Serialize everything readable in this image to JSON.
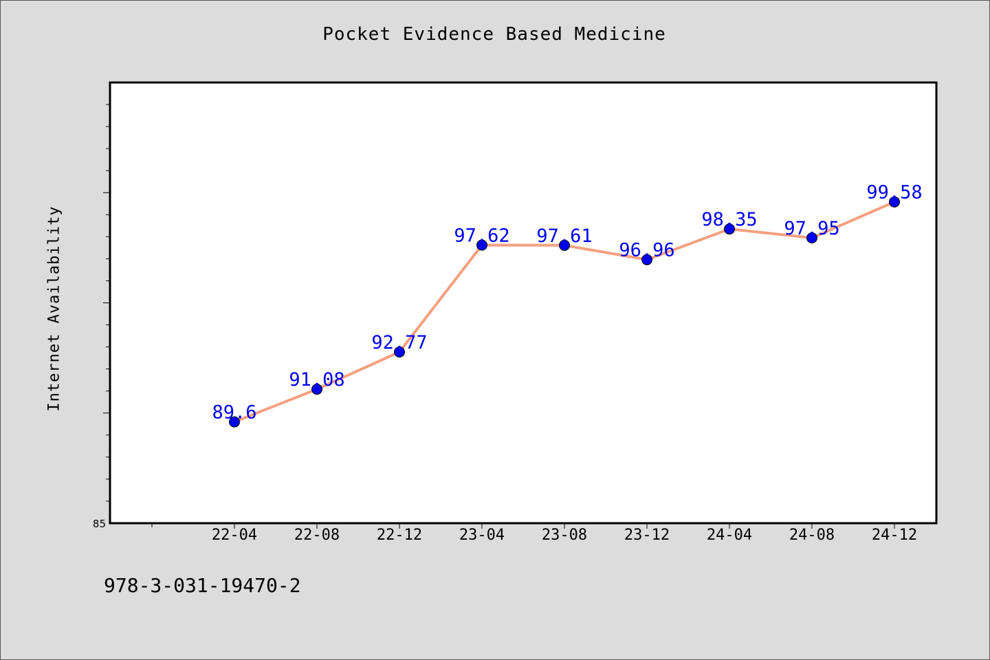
{
  "page": {
    "title": "Pocket Evidence Based Medicine",
    "footer_code": "978-3-031-19470-2"
  },
  "chart_data": {
    "type": "line",
    "title": "Pocket Evidence Based Medicine",
    "xlabel": "",
    "ylabel": "Internet Availability",
    "x": [
      "22-04",
      "22-08",
      "22-12",
      "23-04",
      "23-08",
      "23-12",
      "24-04",
      "24-08",
      "24-12"
    ],
    "series": [
      {
        "values": [
          89.6,
          91.08,
          92.77,
          97.62,
          97.61,
          96.96,
          98.35,
          97.95,
          99.58
        ]
      }
    ],
    "data_labels": [
      "89.6",
      "91.08",
      "92.77",
      "97.62",
      "97.61",
      "96.96",
      "98.35",
      "97.95",
      "99.58"
    ],
    "ylim": [
      85,
      105
    ],
    "ytick_labels": [
      "85"
    ],
    "grid": false,
    "colors": {
      "line": "#f4a080",
      "marker": "#0000ee",
      "data_label": "#0000ee",
      "plot_background": "#ffffff",
      "page_background": "#dcdcdc"
    }
  }
}
